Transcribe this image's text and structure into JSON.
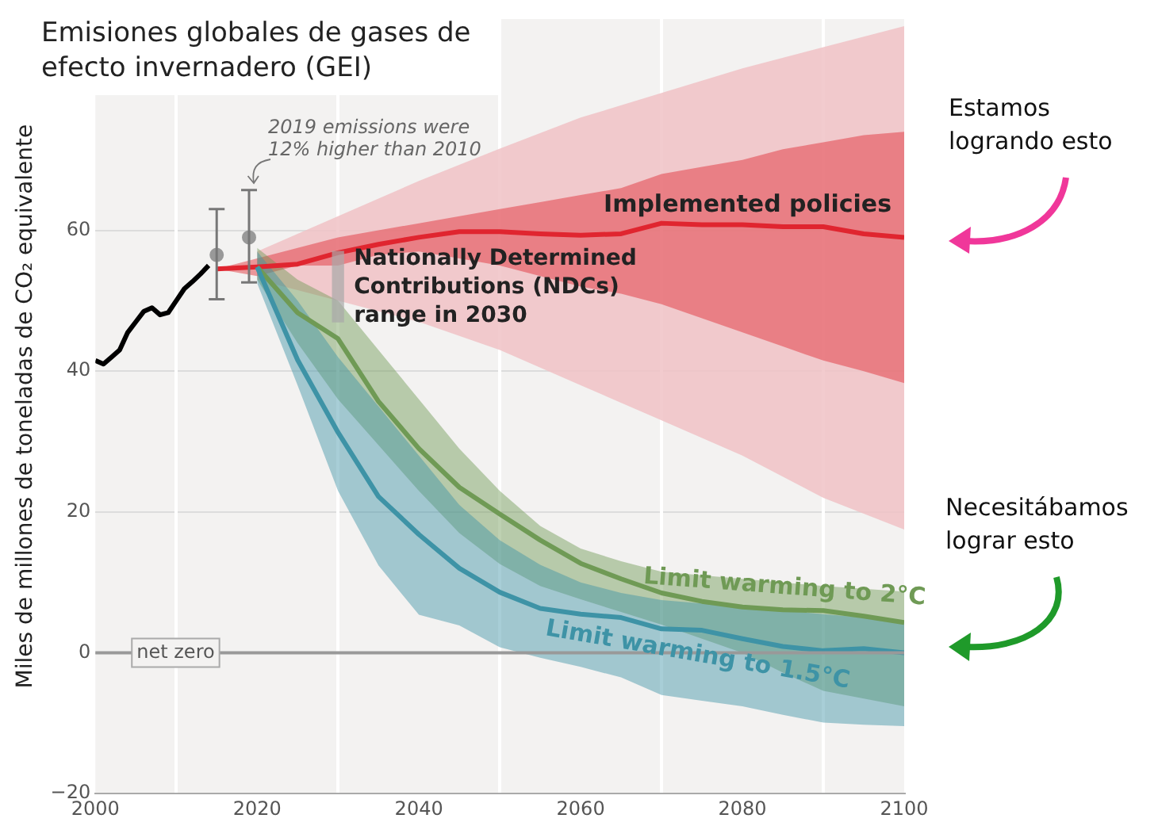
{
  "chart_data": {
    "type": "line",
    "title": "Emisiones globales de gases de efecto invernadero (GEI)",
    "ylabel": "Miles de millones de toneladas de CO₂ equivalente",
    "xlim": [
      2000,
      2100
    ],
    "xticks": [
      2000,
      2020,
      2040,
      2060,
      2080,
      2100
    ],
    "ylim": [
      -20,
      90
    ],
    "yticks": [
      {
        "value": -20,
        "label": "−20"
      },
      0,
      20,
      40,
      60
    ],
    "grid": true,
    "legend": false,
    "marker": "none",
    "line_style": "solid",
    "ref_lines": [
      {
        "axis": "y",
        "value": 0,
        "label": "net zero",
        "color": "#999999"
      }
    ],
    "annotations": [
      {
        "text": "2019 emissions were 12% higher than 2010",
        "x": 2019,
        "y": 65.7
      },
      {
        "text": "Nationally Determined Contributions (NDCs) range in 2030",
        "x": 2030,
        "y": 57
      },
      "Estamos logrando esto",
      "Necesitábamos lograr esto"
    ],
    "series": [
      {
        "color": "#000000",
        "x": [
          2000,
          2001,
          2002,
          2003,
          2004,
          2005,
          2006,
          2007,
          2008,
          2009,
          2010,
          2011,
          2012,
          2013,
          2014
        ],
        "values": [
          41.5,
          41,
          42,
          43,
          45.5,
          47,
          48.5,
          49,
          48,
          48.3,
          50,
          51.7,
          52.7,
          53.8,
          55
        ]
      },
      {
        "type": "scatter",
        "marker": "circle",
        "color": "#999999",
        "x": [
          2015,
          2019
        ],
        "values": [
          56.5,
          59
        ],
        "errors": [
          [
            50.2,
            63
          ],
          [
            52.6,
            65.7
          ]
        ]
      },
      {
        "type": "bar",
        "color": "#a8a8a8",
        "x": [
          2030
        ],
        "base": [
          47
        ],
        "values": [
          10
        ]
      },
      {
        "color": "#f0c2c5",
        "x": [
          2020,
          2030,
          2040,
          2050,
          2060,
          2070,
          2080,
          2090,
          2100
        ],
        "values": [
          null,
          null,
          null,
          null,
          null,
          null,
          null,
          null,
          null
        ],
        "upper": [
          57,
          62,
          67,
          71.6,
          76,
          79.5,
          83,
          86,
          89
        ],
        "lower": [
          53,
          50,
          47,
          43,
          38,
          33,
          28,
          22,
          17.5
        ]
      },
      {
        "name": "Implemented policies",
        "color": "#e0252f",
        "x": [
          2015,
          2020,
          2025,
          2030,
          2035,
          2040,
          2045,
          2050,
          2055,
          2060,
          2065,
          2070,
          2075,
          2080,
          2085,
          2090,
          2095,
          2100
        ],
        "values": [
          54.5,
          54.8,
          55.2,
          56.8,
          58,
          59,
          59.8,
          59.8,
          59.5,
          59.3,
          59.5,
          61,
          60.8,
          60.8,
          60.5,
          60.5,
          59.5,
          59
        ],
        "upper": [
          54.5,
          56,
          57.5,
          59,
          60,
          61,
          62,
          63,
          64,
          65,
          66,
          68,
          69,
          70,
          71.5,
          72.5,
          73.5,
          74
        ],
        "lower": [
          54.5,
          53.5,
          55,
          55,
          56.5,
          57,
          56,
          55,
          53.5,
          52,
          51,
          49.5,
          47.5,
          45.5,
          43.5,
          41.5,
          40,
          38.3
        ]
      },
      {
        "name": "Limit warming to 2°C",
        "color": "#6f9a55",
        "x": [
          2020,
          2025,
          2030,
          2035,
          2040,
          2045,
          2050,
          2055,
          2060,
          2065,
          2070,
          2075,
          2080,
          2085,
          2090,
          2095,
          2100
        ],
        "values": [
          54.8,
          48.3,
          44.6,
          35.7,
          29,
          23.5,
          19.7,
          16,
          12.7,
          10.5,
          8.5,
          7.3,
          6.5,
          6.1,
          6,
          5.2,
          4.3
        ],
        "upper": [
          57.5,
          53,
          50,
          43,
          36,
          29,
          23,
          18,
          14.8,
          13,
          11.5,
          11,
          10.5,
          10,
          9.5,
          9.1,
          8.7
        ],
        "lower": [
          53,
          44,
          36,
          29.5,
          23,
          17,
          12.6,
          9.5,
          7.6,
          5.8,
          4,
          2,
          0,
          -2.8,
          -5.4,
          -6.5,
          -7.6
        ]
      },
      {
        "name": "Limit warming to 1.5°C",
        "color": "#3e93a6",
        "x": [
          2020,
          2025,
          2030,
          2035,
          2040,
          2045,
          2050,
          2055,
          2060,
          2065,
          2070,
          2075,
          2080,
          2085,
          2090,
          2095,
          2100
        ],
        "values": [
          54.8,
          41.6,
          31.3,
          22.2,
          16.8,
          12,
          8.6,
          6.3,
          5.5,
          5,
          3.4,
          3.2,
          2,
          0.9,
          0.3,
          0.6,
          0
        ],
        "upper": [
          57,
          50,
          42,
          35,
          28,
          21,
          16,
          12.5,
          10,
          8.5,
          7.5,
          7,
          6.5,
          6,
          5.5,
          5,
          4.5
        ],
        "lower": [
          52.5,
          38,
          23,
          12.4,
          5.4,
          3.9,
          0.8,
          -0.7,
          -2,
          -3.5,
          -6,
          -6.8,
          -7.6,
          -8.8,
          -9.9,
          -10.2,
          -10.4
        ]
      }
    ]
  }
}
